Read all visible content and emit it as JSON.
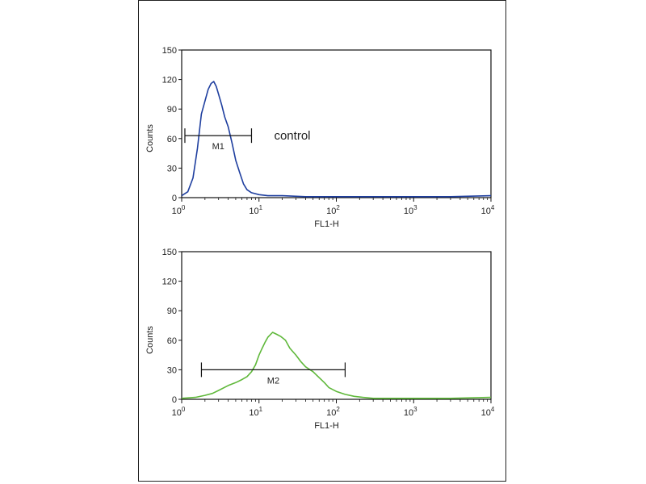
{
  "chart_data": [
    {
      "type": "line",
      "xlabel": "FL1-H",
      "ylabel": "Counts",
      "xscale": "log",
      "xlim": [
        1,
        10000
      ],
      "ylim": [
        0,
        150
      ],
      "x_ticks": [
        1,
        10,
        100,
        1000,
        10000
      ],
      "x_tick_labels": [
        {
          "base": "10",
          "exp": "0"
        },
        {
          "base": "10",
          "exp": "1"
        },
        {
          "base": "10",
          "exp": "2"
        },
        {
          "base": "10",
          "exp": "3"
        },
        {
          "base": "10",
          "exp": "4"
        }
      ],
      "y_ticks": [
        0,
        30,
        60,
        90,
        120,
        150
      ],
      "color": "#1f3f9f",
      "annotation": "control",
      "gate": {
        "label": "M1",
        "x_start": 1.1,
        "x_end": 8.0,
        "y": 63
      },
      "series": [
        {
          "x": [
            1.0,
            1.2,
            1.4,
            1.6,
            1.8,
            2.0,
            2.2,
            2.4,
            2.6,
            2.8,
            3.0,
            3.3,
            3.6,
            4.0,
            4.5,
            5.0,
            5.6,
            6.3,
            7.0,
            8.0,
            10,
            13,
            20,
            40,
            100,
            300,
            1000,
            3000,
            10000
          ],
          "y": [
            2,
            6,
            20,
            50,
            85,
            98,
            110,
            116,
            118,
            113,
            105,
            94,
            82,
            72,
            55,
            38,
            26,
            14,
            8,
            5,
            3,
            2,
            2,
            1,
            1,
            1,
            1,
            1,
            2
          ]
        }
      ]
    },
    {
      "type": "line",
      "xlabel": "FL1-H",
      "ylabel": "Counts",
      "xscale": "log",
      "xlim": [
        1,
        10000
      ],
      "ylim": [
        0,
        150
      ],
      "x_ticks": [
        1,
        10,
        100,
        1000,
        10000
      ],
      "x_tick_labels": [
        {
          "base": "10",
          "exp": "0"
        },
        {
          "base": "10",
          "exp": "1"
        },
        {
          "base": "10",
          "exp": "2"
        },
        {
          "base": "10",
          "exp": "3"
        },
        {
          "base": "10",
          "exp": "4"
        }
      ],
      "y_ticks": [
        0,
        30,
        60,
        90,
        120,
        150
      ],
      "color": "#5fb83a",
      "annotation": "",
      "gate": {
        "label": "M2",
        "x_start": 1.8,
        "x_end": 130,
        "y": 30
      },
      "series": [
        {
          "x": [
            1.0,
            1.5,
            2.0,
            2.5,
            3.0,
            4.0,
            5.0,
            6.0,
            7.0,
            8.0,
            9.0,
            10,
            11,
            12,
            13,
            15,
            17,
            19,
            22,
            25,
            30,
            35,
            40,
            50,
            60,
            70,
            80,
            100,
            130,
            170,
            220,
            300,
            500,
            1000,
            3000,
            10000
          ],
          "y": [
            1,
            2,
            4,
            6,
            9,
            14,
            17,
            20,
            23,
            28,
            35,
            45,
            52,
            58,
            63,
            68,
            66,
            64,
            60,
            52,
            45,
            38,
            33,
            28,
            22,
            17,
            12,
            8,
            5,
            3,
            2,
            1,
            1,
            1,
            1,
            2
          ]
        }
      ]
    }
  ]
}
